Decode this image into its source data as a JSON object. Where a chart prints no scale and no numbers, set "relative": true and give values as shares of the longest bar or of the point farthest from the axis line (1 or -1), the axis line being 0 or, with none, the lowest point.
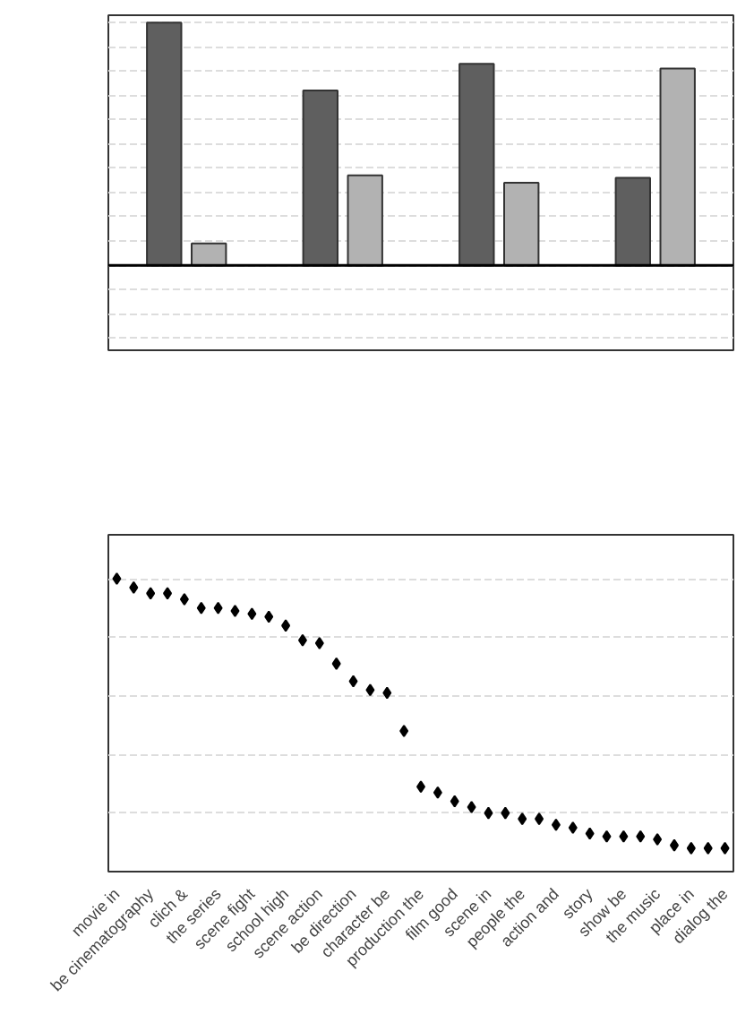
{
  "chart_data": [
    {
      "type": "bar",
      "relative": true,
      "categories": [
        null,
        null,
        null,
        null
      ],
      "grid": "y",
      "series": [
        {
          "color": "#5f5f5f",
          "values": [
            1,
            0.72,
            0.83,
            0.36
          ]
        },
        {
          "color": "#b2b2b2",
          "values": [
            0.09,
            0.37,
            0.34,
            0.81
          ]
        }
      ]
    },
    {
      "type": "scatter",
      "relative": true,
      "marker": "diamond",
      "grid": "y",
      "categories": [
        "movie in",
        null,
        "be cinematography",
        null,
        "clich &",
        null,
        "the series",
        null,
        "scene fight",
        null,
        "school high",
        null,
        "scene action",
        null,
        "be direction",
        null,
        "character be",
        null,
        "production the",
        null,
        "film good",
        null,
        "scene in",
        null,
        "people the",
        null,
        "action and",
        null,
        "story",
        null,
        "show be",
        null,
        "the music",
        null,
        "place in",
        null,
        "dialog the"
      ],
      "series": [
        {
          "color": "#000000",
          "values": [
            1,
            0.97,
            0.95,
            0.95,
            0.93,
            0.9,
            0.9,
            0.89,
            0.88,
            0.87,
            0.84,
            0.79,
            0.78,
            0.71,
            0.65,
            0.62,
            0.61,
            0.48,
            0.29,
            0.27,
            0.24,
            0.22,
            0.2,
            0.2,
            0.18,
            0.18,
            0.16,
            0.15,
            0.13,
            0.12,
            0.12,
            0.12,
            0.11,
            0.09,
            0.08,
            0.08,
            0.08
          ]
        }
      ]
    }
  ]
}
